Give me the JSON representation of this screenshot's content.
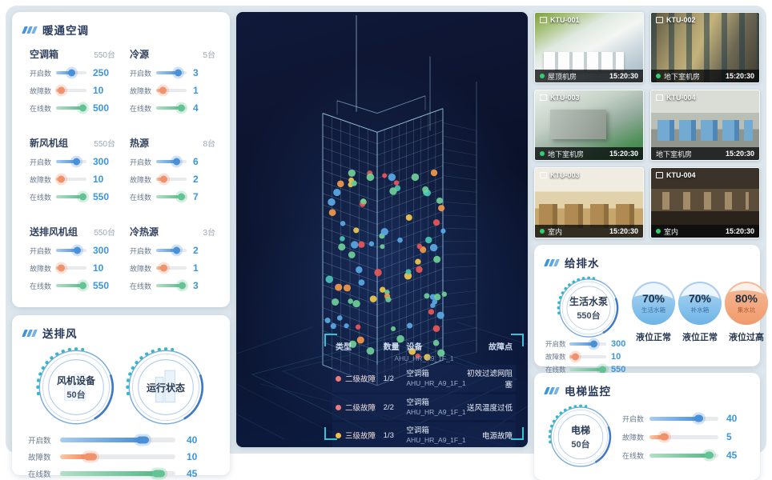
{
  "hvac": {
    "title": "暖通空调",
    "groups": [
      {
        "name": "空调箱",
        "total": "550台",
        "metrics": [
          {
            "label": "开启数",
            "value": "250",
            "pct": 55,
            "color": "blue"
          },
          {
            "label": "故障数",
            "value": "10",
            "pct": 20,
            "color": "orange"
          },
          {
            "label": "在线数",
            "value": "500",
            "pct": 92,
            "color": "green"
          }
        ]
      },
      {
        "name": "冷源",
        "total": "5台",
        "metrics": [
          {
            "label": "开启数",
            "value": "3",
            "pct": 76,
            "color": "blue"
          },
          {
            "label": "故障数",
            "value": "1",
            "pct": 25,
            "color": "orange"
          },
          {
            "label": "在线数",
            "value": "4",
            "pct": 86,
            "color": "green"
          }
        ]
      },
      {
        "name": "新风机组",
        "total": "550台",
        "metrics": [
          {
            "label": "开启数",
            "value": "300",
            "pct": 72,
            "color": "blue"
          },
          {
            "label": "故障数",
            "value": "10",
            "pct": 22,
            "color": "orange"
          },
          {
            "label": "在线数",
            "value": "550",
            "pct": 93,
            "color": "green"
          }
        ]
      },
      {
        "name": "热源",
        "total": "8台",
        "metrics": [
          {
            "label": "开启数",
            "value": "6",
            "pct": 72,
            "color": "blue"
          },
          {
            "label": "故障数",
            "value": "2",
            "pct": 28,
            "color": "orange"
          },
          {
            "label": "在线数",
            "value": "7",
            "pct": 88,
            "color": "green"
          }
        ]
      },
      {
        "name": "送排风机组",
        "total": "550台",
        "metrics": [
          {
            "label": "开启数",
            "value": "300",
            "pct": 74,
            "color": "blue"
          },
          {
            "label": "故障数",
            "value": "10",
            "pct": 22,
            "color": "orange"
          },
          {
            "label": "在线数",
            "value": "550",
            "pct": 93,
            "color": "green"
          }
        ]
      },
      {
        "name": "冷热源",
        "total": "3台",
        "metrics": [
          {
            "label": "开启数",
            "value": "2",
            "pct": 72,
            "color": "blue"
          },
          {
            "label": "故障数",
            "value": "1",
            "pct": 28,
            "color": "orange"
          },
          {
            "label": "在线数",
            "value": "3",
            "pct": 90,
            "color": "green"
          }
        ]
      }
    ]
  },
  "fan": {
    "title": "送排风",
    "gauges": [
      {
        "name": "风机设备",
        "sub": "50台"
      },
      {
        "name": "运行状态",
        "sub": ""
      }
    ],
    "metrics": [
      {
        "label": "开启数",
        "value": "40",
        "pct": 70,
        "color": "blue"
      },
      {
        "label": "故障数",
        "value": "10",
        "pct": 25,
        "color": "orange"
      },
      {
        "label": "在线数",
        "value": "45",
        "pct": 84,
        "color": "green"
      }
    ]
  },
  "cameras": [
    {
      "id": "KTU-001",
      "location": "屋顶机房",
      "time": "15:20:30",
      "online": true
    },
    {
      "id": "KTU-002",
      "location": "地下室机房",
      "time": "15:20:30",
      "online": true
    },
    {
      "id": "KTU-003",
      "location": "地下室机房",
      "time": "15:20:30",
      "online": true
    },
    {
      "id": "KTU-004",
      "location": "地下室机房",
      "time": "15:20:30",
      "online": false
    },
    {
      "id": "KTU-003",
      "location": "室内",
      "time": "15:20:30",
      "online": true
    },
    {
      "id": "KTU-004",
      "location": "室内",
      "time": "15:20:30",
      "online": true
    }
  ],
  "water": {
    "title": "给排水",
    "gauge": {
      "name": "生活水泵",
      "sub": "550台"
    },
    "tanks": [
      {
        "percent": "70%",
        "name": "生活水箱",
        "status": "液位正常",
        "tone": "blue"
      },
      {
        "percent": "70%",
        "name": "补水箱",
        "status": "液位正常",
        "tone": "blue"
      },
      {
        "percent": "80%",
        "name": "集水坑",
        "status": "液位过高",
        "tone": "orange"
      }
    ],
    "metrics": [
      {
        "label": "开启数",
        "value": "300",
        "pct": 70,
        "color": "blue"
      },
      {
        "label": "故障数",
        "value": "10",
        "pct": 20,
        "color": "orange"
      },
      {
        "label": "在线数",
        "value": "550",
        "pct": 93,
        "color": "green"
      }
    ]
  },
  "elevator": {
    "title": "电梯监控",
    "gauge": {
      "name": "电梯",
      "sub": "50台"
    },
    "metrics": [
      {
        "label": "开启数",
        "value": "40",
        "pct": 72,
        "color": "blue"
      },
      {
        "label": "故障数",
        "value": "5",
        "pct": 22,
        "color": "orange"
      },
      {
        "label": "在线数",
        "value": "45",
        "pct": 87,
        "color": "green"
      }
    ]
  },
  "fault_table": {
    "headers": [
      "类型",
      "数量",
      "设备",
      "故障点"
    ],
    "partial_device_id": "AHU_HR_A9_1F_1",
    "rows": [
      {
        "level": "二级故障",
        "level_color": "#ee7a7a",
        "count": "1/2",
        "device": "空调箱",
        "device_id": "AHU_HR_A9_1F_1",
        "fault": "初效过滤网阻塞"
      },
      {
        "level": "二级故障",
        "level_color": "#ee7a7a",
        "count": "2/2",
        "device": "空调箱",
        "device_id": "AHU_HR_A9_1F_1",
        "fault": "送风温度过低"
      },
      {
        "level": "三级故障",
        "level_color": "#f0c04a",
        "count": "1/3",
        "device": "空调箱",
        "device_id": "AHU_HR_A9_1F_1",
        "fault": "电源故障"
      }
    ]
  },
  "building": {
    "dot_count": 88,
    "dot_palette": [
      "#5aa9e6",
      "#6fcf97",
      "#6fcf97",
      "#5aa9e6",
      "#49c5b6",
      "#f2994a",
      "#f2c94c",
      "#eb5757"
    ]
  }
}
